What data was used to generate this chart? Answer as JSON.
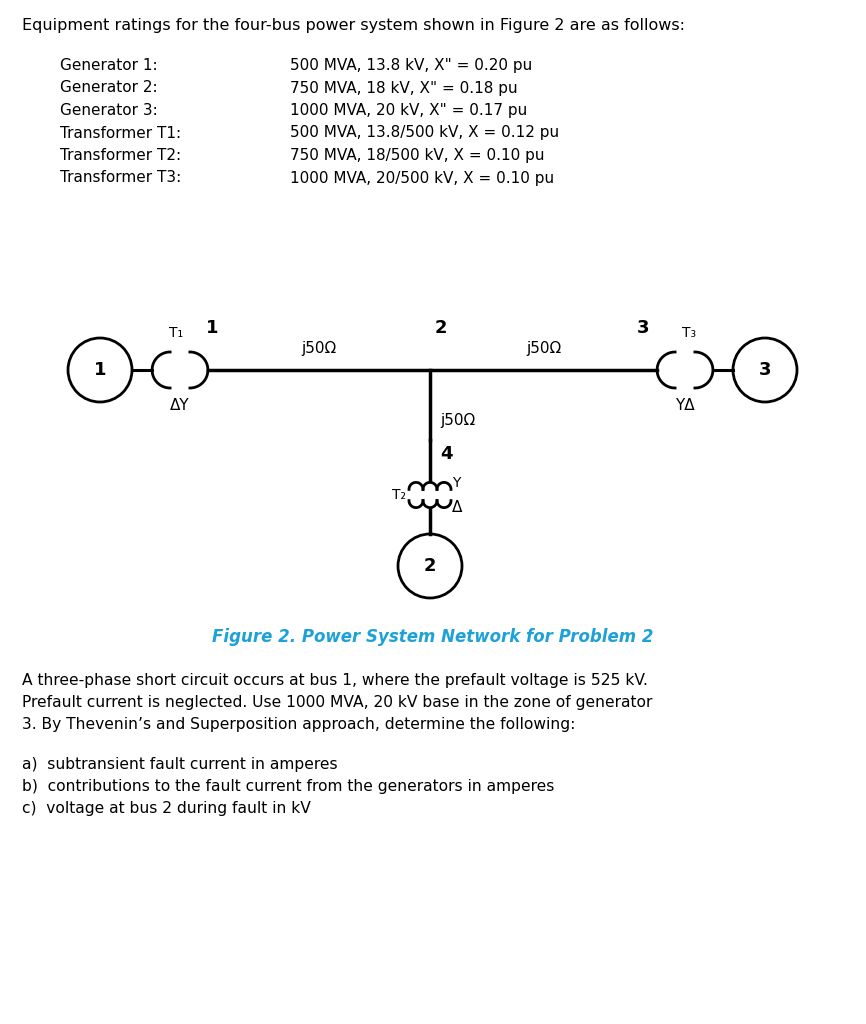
{
  "title_text": "Equipment ratings for the four-bus power system shown in Figure 2 are as follows:",
  "equipment": [
    {
      "label": "Generator 1:",
      "value": "500 MVA, 13.8 kV, X\" = 0.20 pu"
    },
    {
      "label": "Generator 2:",
      "value": "750 MVA, 18 kV, X\" = 0.18 pu"
    },
    {
      "label": "Generator 3:",
      "value": "1000 MVA, 20 kV, X\" = 0.17 pu"
    },
    {
      "label": "Transformer T1:",
      "value": "500 MVA, 13.8/500 kV, X = 0.12 pu"
    },
    {
      "label": "Transformer T2:",
      "value": "750 MVA, 18/500 kV, X = 0.10 pu"
    },
    {
      "label": "Transformer T3:",
      "value": "1000 MVA, 20/500 kV, X = 0.10 pu"
    }
  ],
  "figure_caption": "Figure 2. Power System Network for Problem 2",
  "figure_caption_color": "#1da1d6",
  "paragraph1": "A three-phase short circuit occurs at bus 1, where the prefault voltage is 525 kV.\nPrefault current is neglected. Use 1000 MVA, 20 kV base in the zone of generator\n3. By Thevenin’s and Superposition approach, determine the following:",
  "list_items": [
    "a)  subtransient fault current in amperes⁣",
    "b)  contributions to the fault current from the generators in amperes",
    "c)  voltage at bus 2 during fault in kV"
  ],
  "bg_color": "#ffffff",
  "text_color": "#000000"
}
